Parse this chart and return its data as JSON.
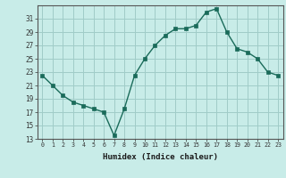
{
  "x": [
    0,
    1,
    2,
    3,
    4,
    5,
    6,
    7,
    8,
    9,
    10,
    11,
    12,
    13,
    14,
    15,
    16,
    17,
    18,
    19,
    20,
    21,
    22,
    23
  ],
  "y": [
    22.5,
    21.0,
    19.5,
    18.5,
    18.0,
    17.5,
    17.0,
    13.5,
    17.5,
    22.5,
    25.0,
    27.0,
    28.5,
    29.5,
    29.5,
    30.0,
    32.0,
    32.5,
    29.0,
    26.5,
    26.0,
    25.0,
    23.0,
    22.5
  ],
  "xlabel": "Humidex (Indice chaleur)",
  "bg_color": "#c8ece8",
  "grid_color": "#a0ccc8",
  "line_color": "#1a6b5a",
  "marker_color": "#1a6b5a",
  "ylim": [
    13,
    33
  ],
  "yticks": [
    13,
    15,
    17,
    19,
    21,
    23,
    25,
    27,
    29,
    31
  ],
  "xticks": [
    0,
    1,
    2,
    3,
    4,
    5,
    6,
    7,
    8,
    9,
    10,
    11,
    12,
    13,
    14,
    15,
    16,
    17,
    18,
    19,
    20,
    21,
    22,
    23
  ],
  "xlim": [
    -0.5,
    23.5
  ]
}
